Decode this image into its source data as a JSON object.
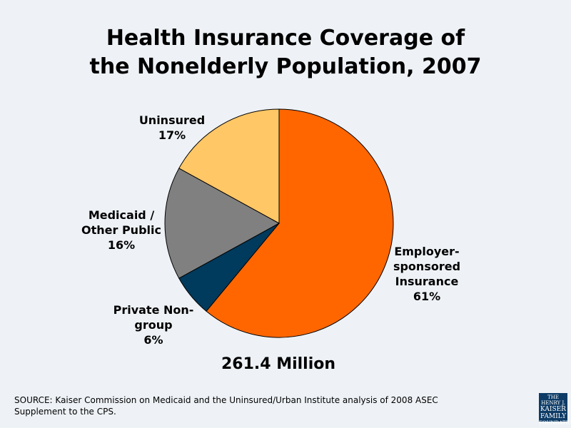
{
  "chart_data": {
    "type": "pie",
    "title": "Health Insurance Coverage of the Nonelderly Population, 2007",
    "total_label": "261.4 Million",
    "start": "top",
    "direction": "clockwise",
    "slices": [
      {
        "label": "Employer-sponsored Insurance",
        "label_lines": [
          "Employer-",
          "sponsored",
          "Insurance"
        ],
        "value": 61,
        "value_label": "61%",
        "color": "#ff6600"
      },
      {
        "label": "Private Non-group",
        "label_lines": [
          "Private Non-",
          "group"
        ],
        "value": 6,
        "value_label": "6%",
        "color": "#003a5c"
      },
      {
        "label": "Medicaid / Other Public",
        "label_lines": [
          "Medicaid /",
          "Other Public"
        ],
        "value": 16,
        "value_label": "16%",
        "color": "#808080"
      },
      {
        "label": "Uninsured",
        "label_lines": [
          "Uninsured"
        ],
        "value": 17,
        "value_label": "17%",
        "color": "#ffc766"
      }
    ]
  },
  "title_lines": [
    "Health Insurance Coverage of",
    "the Nonelderly Population, 2007"
  ],
  "source": "SOURCE: Kaiser Commission on Medicaid and the Uninsured/Urban Institute analysis of 2008 ASEC Supplement to the CPS.",
  "logo": {
    "lines": [
      "THE HENRY J.",
      "KAISER",
      "FAMILY",
      "FOUNDATION"
    ],
    "color": "#0d3b66"
  }
}
